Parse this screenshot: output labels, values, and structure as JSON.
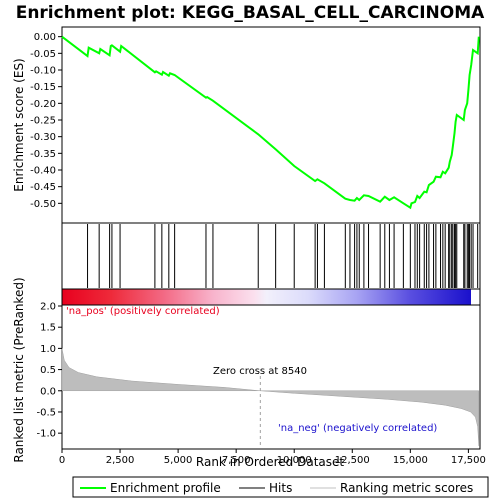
{
  "chart_data": {
    "title": "Enrichment plot: KEGG_BASAL_CELL_CARCINOMA",
    "type": "line",
    "x_label": "Rank in Ordered Dataset",
    "x_range": [
      0,
      18000
    ],
    "x_ticks": [
      0,
      2500,
      5000,
      7500,
      10000,
      12500,
      15000,
      17500
    ],
    "x_tick_labels": [
      "0",
      "2,500",
      "5,000",
      "7,500",
      "10,000",
      "12,500",
      "15,000",
      "17,500"
    ],
    "es_panel": {
      "ylabel": "Enrichment score (ES)",
      "ylim": [
        -0.55,
        0.02
      ],
      "yticks": [
        0.0,
        -0.05,
        -0.1,
        -0.15,
        -0.2,
        -0.25,
        -0.3,
        -0.35,
        -0.4,
        -0.45,
        -0.5
      ],
      "ytick_labels": [
        "0.00",
        "-0.05",
        "-0.10",
        "-0.15",
        "-0.20",
        "-0.25",
        "-0.30",
        "-0.35",
        "-0.40",
        "-0.45",
        "-0.50"
      ],
      "series": [
        {
          "name": "Enrichment profile",
          "color": "#00ff00",
          "points": [
            [
              0,
              0
            ],
            [
              1100,
              -0.058
            ],
            [
              1150,
              -0.033
            ],
            [
              1600,
              -0.05
            ],
            [
              1650,
              -0.037
            ],
            [
              2050,
              -0.056
            ],
            [
              2100,
              -0.028
            ],
            [
              2150,
              -0.026
            ],
            [
              2500,
              -0.045
            ],
            [
              2550,
              -0.028
            ],
            [
              4000,
              -0.107
            ],
            [
              4050,
              -0.104
            ],
            [
              4300,
              -0.114
            ],
            [
              4350,
              -0.106
            ],
            [
              4600,
              -0.117
            ],
            [
              4650,
              -0.11
            ],
            [
              4850,
              -0.115
            ],
            [
              6200,
              -0.183
            ],
            [
              6250,
              -0.181
            ],
            [
              6500,
              -0.192
            ],
            [
              8450,
              -0.293
            ],
            [
              9200,
              -0.338
            ],
            [
              10000,
              -0.388
            ],
            [
              10900,
              -0.433
            ],
            [
              11000,
              -0.428
            ],
            [
              11300,
              -0.44
            ],
            [
              12200,
              -0.486
            ],
            [
              12400,
              -0.49
            ],
            [
              12600,
              -0.492
            ],
            [
              12700,
              -0.484
            ],
            [
              12800,
              -0.49
            ],
            [
              13000,
              -0.476
            ],
            [
              13200,
              -0.478
            ],
            [
              13700,
              -0.495
            ],
            [
              13900,
              -0.48
            ],
            [
              14100,
              -0.49
            ],
            [
              14300,
              -0.482
            ],
            [
              14700,
              -0.5
            ],
            [
              15000,
              -0.513
            ],
            [
              15050,
              -0.5
            ],
            [
              15200,
              -0.496
            ],
            [
              15300,
              -0.478
            ],
            [
              15400,
              -0.484
            ],
            [
              15600,
              -0.465
            ],
            [
              15700,
              -0.467
            ],
            [
              15800,
              -0.445
            ],
            [
              16000,
              -0.435
            ],
            [
              16100,
              -0.42
            ],
            [
              16300,
              -0.422
            ],
            [
              16400,
              -0.405
            ],
            [
              16500,
              -0.41
            ],
            [
              16650,
              -0.393
            ],
            [
              16700,
              -0.375
            ],
            [
              16780,
              -0.355
            ],
            [
              16830,
              -0.33
            ],
            [
              16900,
              -0.29
            ],
            [
              16950,
              -0.255
            ],
            [
              17000,
              -0.235
            ],
            [
              17300,
              -0.25
            ],
            [
              17350,
              -0.22
            ],
            [
              17450,
              -0.2
            ],
            [
              17500,
              -0.16
            ],
            [
              17550,
              -0.115
            ],
            [
              17620,
              -0.085
            ],
            [
              17700,
              -0.04
            ],
            [
              17900,
              -0.05
            ],
            [
              17950,
              0
            ]
          ]
        }
      ]
    },
    "hits": [
      1100,
      1600,
      2050,
      2150,
      2500,
      4000,
      4300,
      4600,
      4850,
      6200,
      6500,
      8450,
      9200,
      10000,
      10900,
      11000,
      11300,
      12200,
      12400,
      12600,
      12700,
      12800,
      13000,
      13200,
      13700,
      13900,
      14100,
      14300,
      14700,
      15000,
      15200,
      15300,
      15400,
      15600,
      15700,
      15800,
      16000,
      16100,
      16300,
      16400,
      16500,
      16650,
      16700,
      16780,
      16830,
      16900,
      16950,
      17000,
      17300,
      17350,
      17450,
      17500,
      17550,
      17620,
      17700,
      17900
    ],
    "metric_panel": {
      "ylabel": "Ranked list metric (PreRanked)",
      "ylim": [
        -1.35,
        2.0
      ],
      "yticks": [
        2.0,
        1.5,
        1.0,
        0.5,
        0.0,
        -0.5,
        -1.0
      ],
      "ytick_labels": [
        "2.0",
        "1.5",
        "1.0",
        "0.5",
        "0.0",
        "-0.5",
        "-1.0"
      ],
      "profile": [
        [
          0,
          1.0
        ],
        [
          100,
          0.72
        ],
        [
          300,
          0.55
        ],
        [
          700,
          0.43
        ],
        [
          1500,
          0.33
        ],
        [
          3000,
          0.23
        ],
        [
          5000,
          0.15
        ],
        [
          7000,
          0.08
        ],
        [
          8540,
          0.0
        ],
        [
          10000,
          -0.06
        ],
        [
          12000,
          -0.13
        ],
        [
          14000,
          -0.2
        ],
        [
          15500,
          -0.27
        ],
        [
          16500,
          -0.34
        ],
        [
          17200,
          -0.42
        ],
        [
          17600,
          -0.5
        ],
        [
          17800,
          -0.62
        ],
        [
          17900,
          -0.85
        ],
        [
          17950,
          -1.3
        ]
      ],
      "zero_cross_label": "Zero cross at 8540",
      "zero_cross": 8540,
      "pos_label": "'na_pos' (positively correlated)",
      "neg_label": "'na_neg' (negatively correlated)",
      "pos_color": "#e8001e",
      "neg_color": "#1a10cc"
    },
    "legend": {
      "placement": "bottom",
      "entries": [
        {
          "label": "Enrichment profile",
          "color": "#00ff00",
          "kind": "line"
        },
        {
          "label": "Hits",
          "color": "#000000",
          "kind": "line"
        },
        {
          "label": "Ranking metric scores",
          "color": "#c0c0c0",
          "kind": "line"
        }
      ]
    }
  }
}
